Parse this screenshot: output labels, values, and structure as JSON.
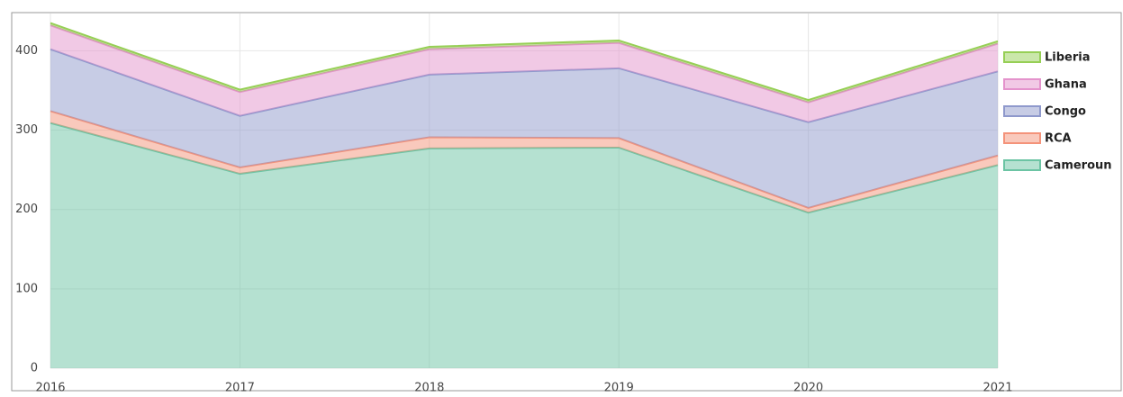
{
  "chart_data": {
    "type": "stacked_area",
    "categories": [
      "2016",
      "2017",
      "2018",
      "2019",
      "2020",
      "2021"
    ],
    "series": [
      {
        "name": "Cameroun",
        "color": "#6cc4a4",
        "values": [
          309,
          245,
          277,
          278,
          196,
          256
        ]
      },
      {
        "name": "RCA",
        "color": "#f4937a",
        "values": [
          15,
          8,
          14,
          12,
          6,
          12
        ]
      },
      {
        "name": "Congo",
        "color": "#8f99cc",
        "values": [
          78,
          65,
          79,
          88,
          108,
          106
        ]
      },
      {
        "name": "Ghana",
        "color": "#e493cc",
        "values": [
          30,
          30,
          32,
          32,
          25,
          35
        ]
      },
      {
        "name": "Liberia",
        "color": "#96cf55",
        "values": [
          3,
          3,
          3,
          3,
          3,
          3
        ]
      }
    ],
    "ylim": [
      0,
      447
    ],
    "yticks": [
      0,
      100,
      200,
      300,
      400
    ],
    "grid": true,
    "legend": "right"
  }
}
